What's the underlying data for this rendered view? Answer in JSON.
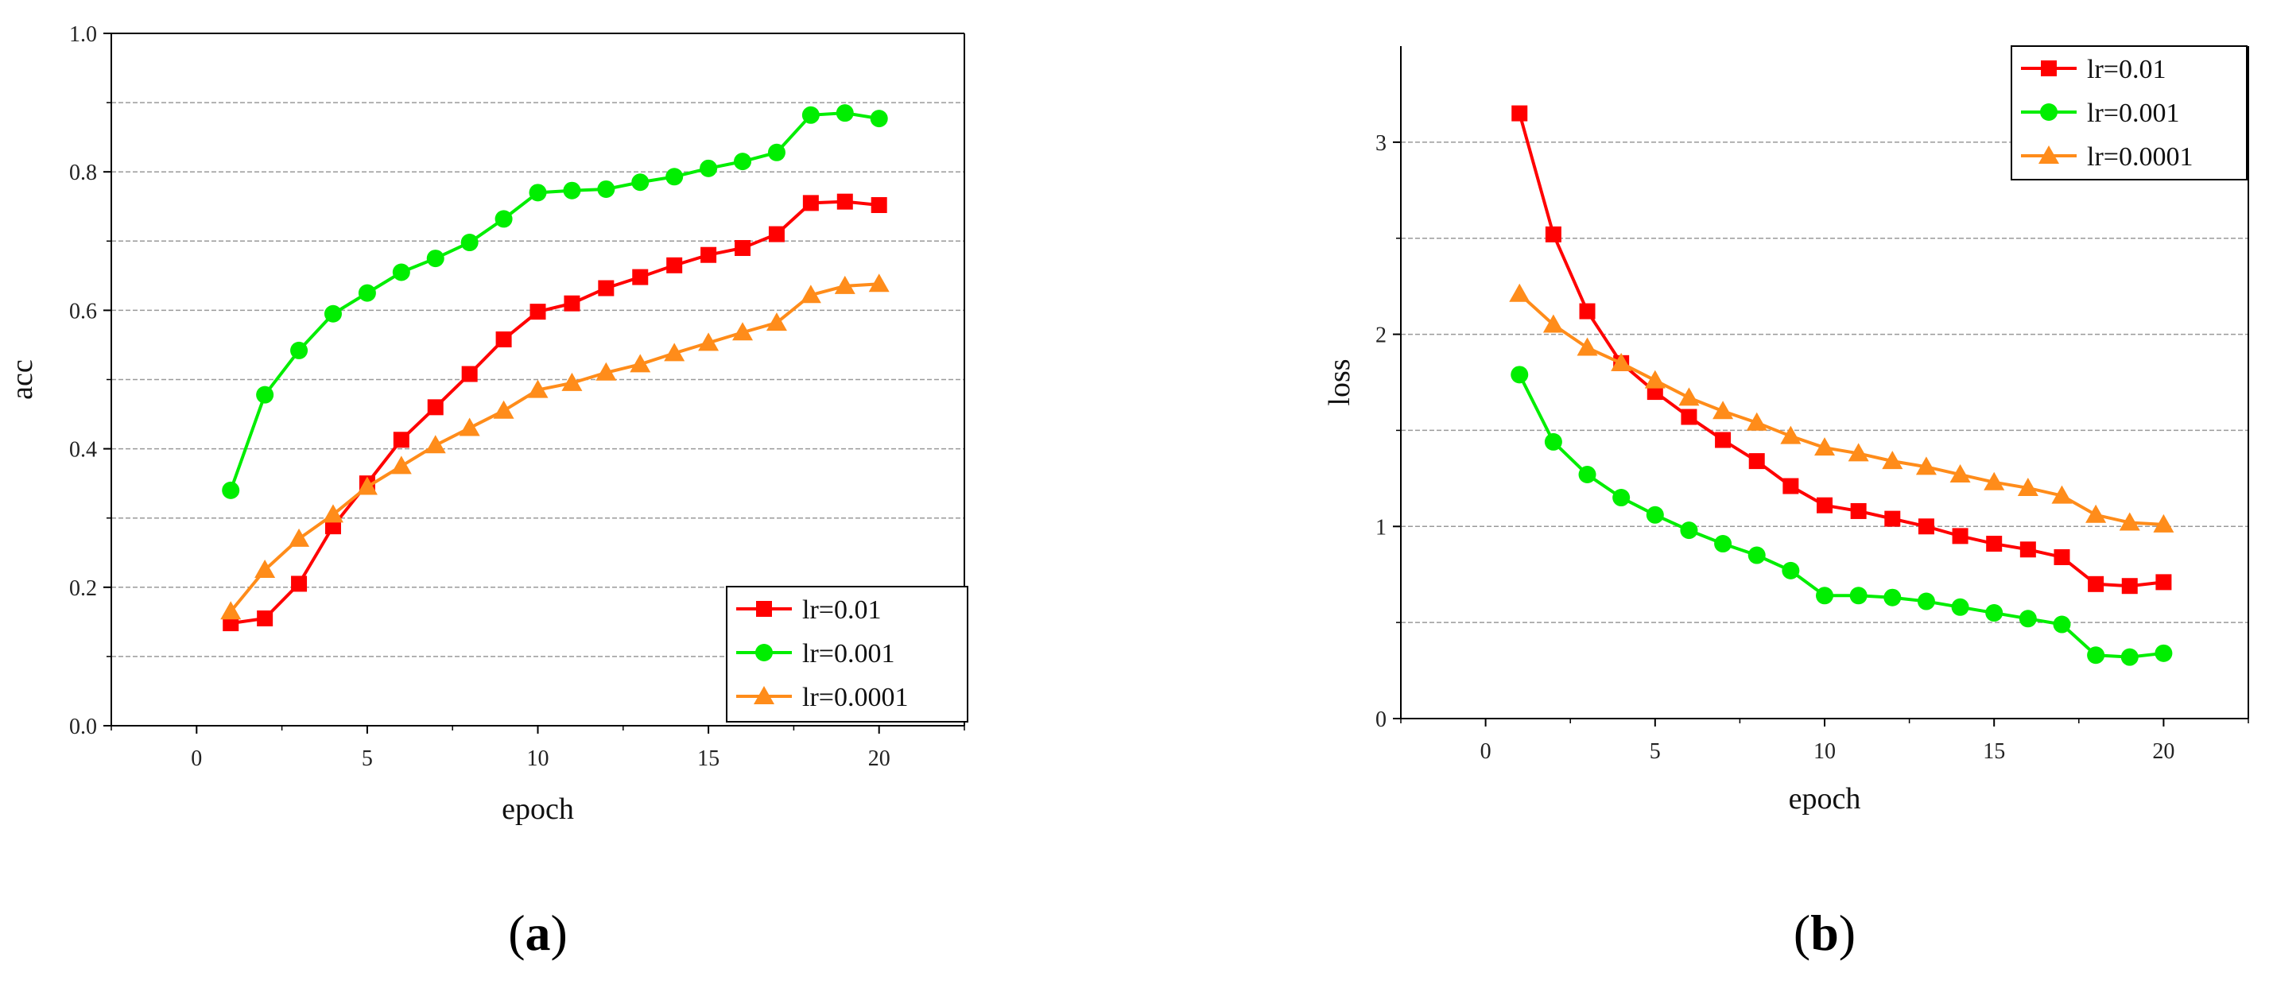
{
  "chart_data": [
    {
      "type": "line",
      "panel_label": "a",
      "xlabel": "epoch",
      "ylabel": "acc",
      "xlim": [
        -2.5,
        22.5
      ],
      "ylim": [
        0.0,
        1.0
      ],
      "xticks": [
        0,
        5,
        10,
        15,
        20
      ],
      "yticks": [
        0.0,
        0.2,
        0.4,
        0.6,
        0.8,
        1.0
      ],
      "ytick_labels": [
        "0.0",
        "0.2",
        "0.4",
        "0.6",
        "0.8",
        "1.0"
      ],
      "gridlines_y": [
        0.1,
        0.2,
        0.3,
        0.4,
        0.5,
        0.6,
        0.7,
        0.8,
        0.9
      ],
      "legend_position": "bottom-right",
      "x": [
        1,
        2,
        3,
        4,
        5,
        6,
        7,
        8,
        9,
        10,
        11,
        12,
        13,
        14,
        15,
        16,
        17,
        18,
        19,
        20
      ],
      "series": [
        {
          "name": "lr=0.01",
          "color": "#ff0000",
          "marker": "square",
          "values": [
            0.148,
            0.155,
            0.205,
            0.288,
            0.35,
            0.413,
            0.46,
            0.508,
            0.558,
            0.598,
            0.61,
            0.632,
            0.648,
            0.665,
            0.68,
            0.69,
            0.71,
            0.755,
            0.757,
            0.752
          ]
        },
        {
          "name": "lr=0.001",
          "color": "#00ee00",
          "marker": "circle",
          "values": [
            0.34,
            0.478,
            0.542,
            0.595,
            0.625,
            0.655,
            0.675,
            0.698,
            0.732,
            0.77,
            0.773,
            0.775,
            0.785,
            0.793,
            0.805,
            0.815,
            0.828,
            0.882,
            0.885,
            0.877
          ]
        },
        {
          "name": "lr=0.0001",
          "color": "#ff8c1a",
          "marker": "triangle",
          "values": [
            0.165,
            0.225,
            0.27,
            0.305,
            0.345,
            0.375,
            0.405,
            0.43,
            0.455,
            0.485,
            0.495,
            0.51,
            0.522,
            0.538,
            0.553,
            0.568,
            0.582,
            0.622,
            0.635,
            0.638
          ]
        }
      ]
    },
    {
      "type": "line",
      "panel_label": "b",
      "xlabel": "epoch",
      "ylabel": "loss",
      "xlim": [
        -2.5,
        22.5
      ],
      "ylim": [
        0,
        3.5
      ],
      "xticks": [
        0,
        5,
        10,
        15,
        20
      ],
      "yticks": [
        0,
        1,
        2,
        3
      ],
      "ytick_labels": [
        "0",
        "1",
        "2",
        "3"
      ],
      "gridlines_y": [
        0.5,
        1.0,
        1.5,
        2.0,
        2.5,
        3.0
      ],
      "legend_position": "top-right",
      "x": [
        1,
        2,
        3,
        4,
        5,
        6,
        7,
        8,
        9,
        10,
        11,
        12,
        13,
        14,
        15,
        16,
        17,
        18,
        19,
        20
      ],
      "series": [
        {
          "name": "lr=0.01",
          "color": "#ff0000",
          "marker": "square",
          "values": [
            3.15,
            2.52,
            2.12,
            1.85,
            1.7,
            1.57,
            1.45,
            1.34,
            1.21,
            1.11,
            1.08,
            1.04,
            1.0,
            0.95,
            0.91,
            0.88,
            0.84,
            0.7,
            0.69,
            0.71
          ]
        },
        {
          "name": "lr=0.001",
          "color": "#00ee00",
          "marker": "circle",
          "values": [
            1.79,
            1.44,
            1.27,
            1.15,
            1.06,
            0.98,
            0.91,
            0.85,
            0.77,
            0.64,
            0.64,
            0.63,
            0.61,
            0.58,
            0.55,
            0.52,
            0.49,
            0.33,
            0.32,
            0.34
          ]
        },
        {
          "name": "lr=0.0001",
          "color": "#ff8c1a",
          "marker": "triangle",
          "values": [
            2.21,
            2.05,
            1.93,
            1.85,
            1.76,
            1.67,
            1.6,
            1.54,
            1.47,
            1.41,
            1.38,
            1.34,
            1.31,
            1.27,
            1.23,
            1.2,
            1.16,
            1.06,
            1.02,
            1.01
          ]
        }
      ]
    }
  ]
}
